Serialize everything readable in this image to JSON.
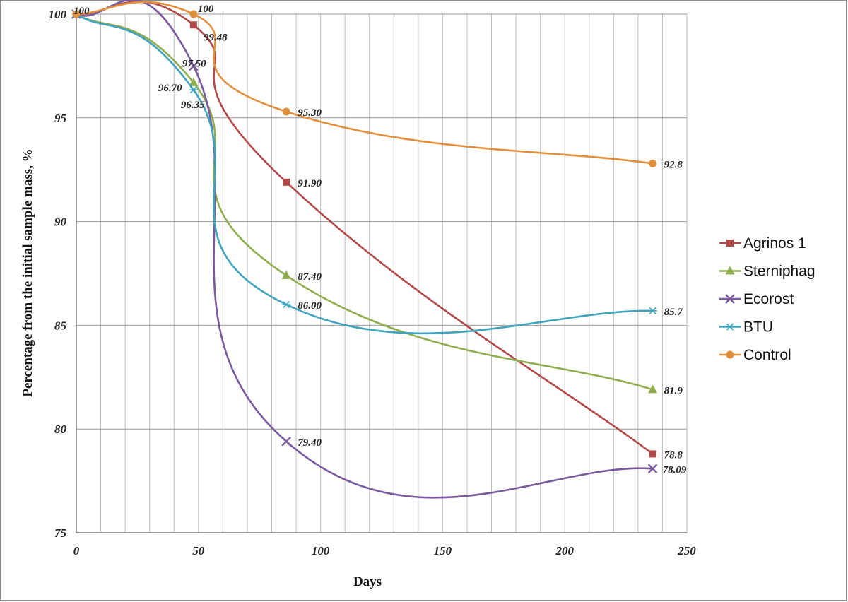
{
  "chart_data": {
    "type": "line",
    "title": "",
    "xlabel": "Days",
    "ylabel": "Percentage from the initial sample mass, %",
    "xlim": [
      0,
      250
    ],
    "ylim": [
      75,
      100
    ],
    "xticks": [
      0,
      50,
      100,
      150,
      200,
      250
    ],
    "xtick_labels": [
      "0",
      "50",
      "100",
      "150",
      "200",
      "250"
    ],
    "yticks": [
      75,
      80,
      85,
      90,
      95,
      100
    ],
    "ytick_labels": [
      "75",
      "80",
      "85",
      "90",
      "95",
      "100"
    ],
    "grid": true,
    "legend_position": "right",
    "series": [
      {
        "name": "Agrinos 1",
        "color": "#B04A48",
        "marker": "square",
        "points": [
          [
            0,
            100
          ],
          [
            48,
            99.48
          ],
          [
            86,
            91.9
          ],
          [
            236,
            78.8
          ]
        ],
        "labels": [
          "",
          "99.48",
          "91.90",
          "78.8"
        ]
      },
      {
        "name": "Sterniphag",
        "color": "#8EAE4E",
        "marker": "triangle",
        "points": [
          [
            0,
            100
          ],
          [
            48,
            96.7
          ],
          [
            86,
            87.4
          ],
          [
            236,
            81.9
          ]
        ],
        "labels": [
          "",
          "96.70",
          "87.40",
          "81.9"
        ]
      },
      {
        "name": "Ecorost",
        "color": "#7A5A9C",
        "marker": "x",
        "points": [
          [
            0,
            100
          ],
          [
            48,
            97.5
          ],
          [
            86,
            79.4
          ],
          [
            236,
            78.09
          ]
        ],
        "labels": [
          "",
          "97.50",
          "79.40",
          "78.09"
        ]
      },
      {
        "name": "BTU",
        "color": "#3FA3BE",
        "marker": "star",
        "points": [
          [
            0,
            100
          ],
          [
            48,
            96.35
          ],
          [
            86,
            86.0
          ],
          [
            236,
            85.7
          ]
        ],
        "labels": [
          "",
          "96.35",
          "86.00",
          "85.7"
        ]
      },
      {
        "name": "Control",
        "color": "#E08F3C",
        "marker": "circle",
        "points": [
          [
            0,
            100
          ],
          [
            48,
            100
          ],
          [
            86,
            95.3
          ],
          [
            236,
            92.8
          ]
        ],
        "labels": [
          "100",
          "100",
          "95.30",
          "92.8"
        ]
      }
    ]
  }
}
